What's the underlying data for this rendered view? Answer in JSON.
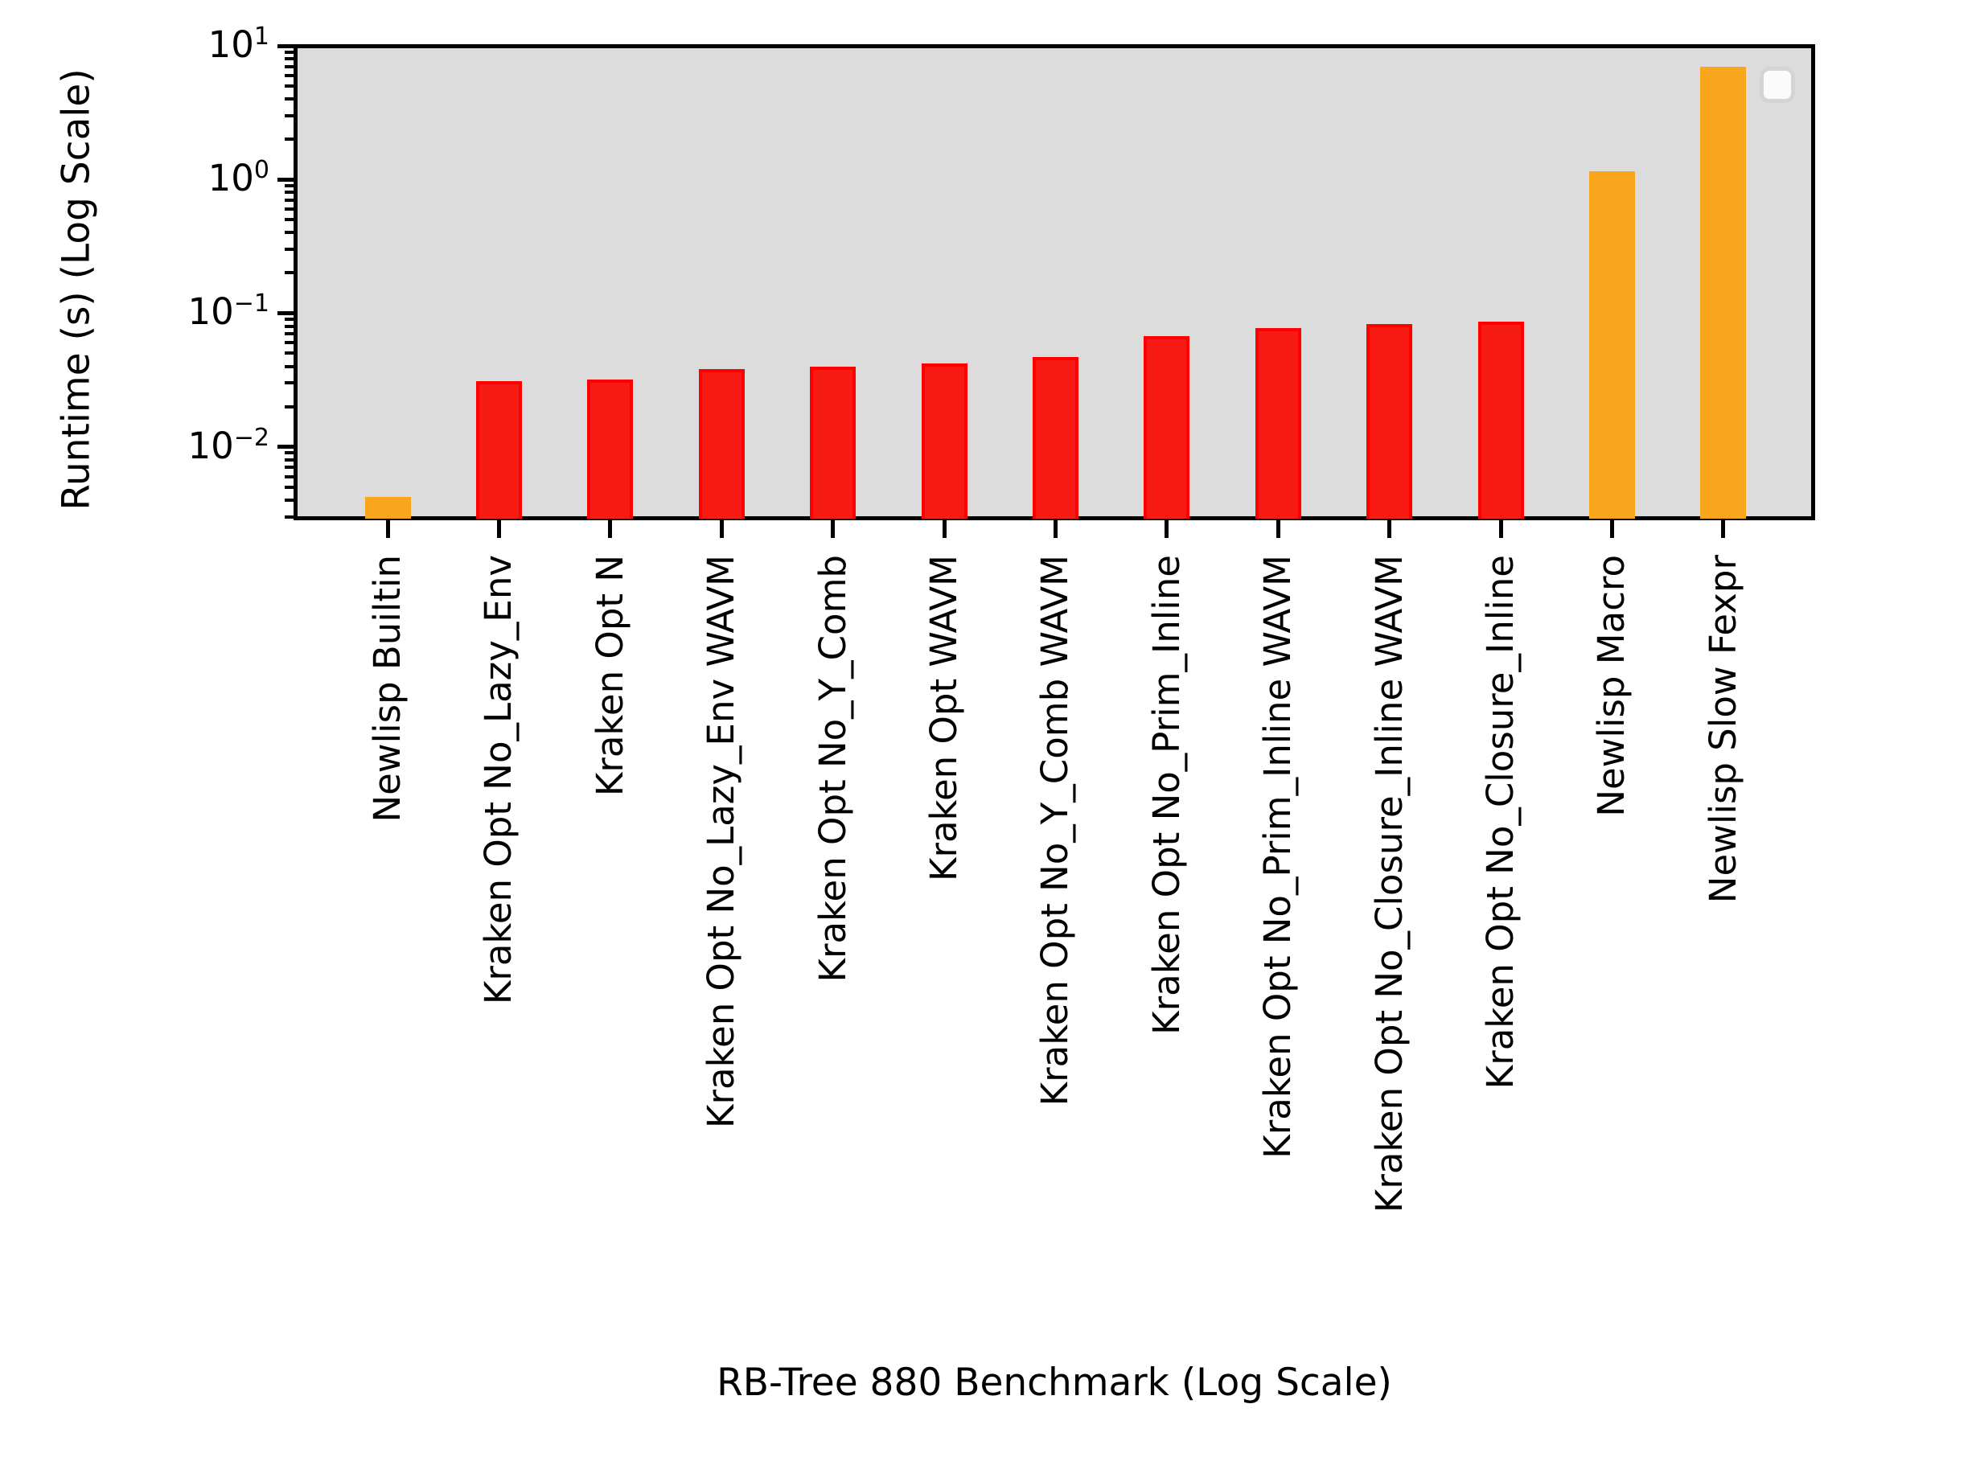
{
  "figure": {
    "background": "#ffffff",
    "plot_background": "#dcdcdc"
  },
  "chart_data": {
    "type": "bar",
    "title": "",
    "xlabel": "RB-Tree 880 Benchmark (Log Scale)",
    "ylabel": "Runtime (s) (Log Scale)",
    "yscale": "log",
    "ylim": [
      0.0029,
      10
    ],
    "ytick_exponents": [
      1,
      0,
      -1,
      -2
    ],
    "grid": false,
    "legend": {
      "visible": true,
      "entries": []
    },
    "categories": [
      "Newlisp Builtin",
      "Kraken Opt No_Lazy_Env",
      "Kraken Opt N",
      "Kraken Opt No_Lazy_Env WAVM",
      "Kraken Opt No_Y_Comb",
      "Kraken Opt WAVM",
      "Kraken Opt No_Y_Comb WAVM",
      "Kraken Opt No_Prim_Inline",
      "Kraken Opt No_Prim_Inline WAVM",
      "Kraken Opt No_Closure_Inline WAVM",
      "Kraken Opt No_Closure_Inline",
      "Newlisp Macro",
      "Newlisp Slow Fexpr"
    ],
    "values": [
      0.0042,
      0.031,
      0.032,
      0.038,
      0.04,
      0.042,
      0.047,
      0.067,
      0.077,
      0.083,
      0.086,
      1.15,
      7.0
    ],
    "bar_color_keys": [
      "orange",
      "red",
      "red",
      "red",
      "red",
      "red",
      "red",
      "red",
      "red",
      "red",
      "red",
      "orange",
      "orange"
    ],
    "colors": {
      "red": "#f71b13",
      "red_edge": "#fe0000",
      "orange": "#f9a61c"
    }
  }
}
